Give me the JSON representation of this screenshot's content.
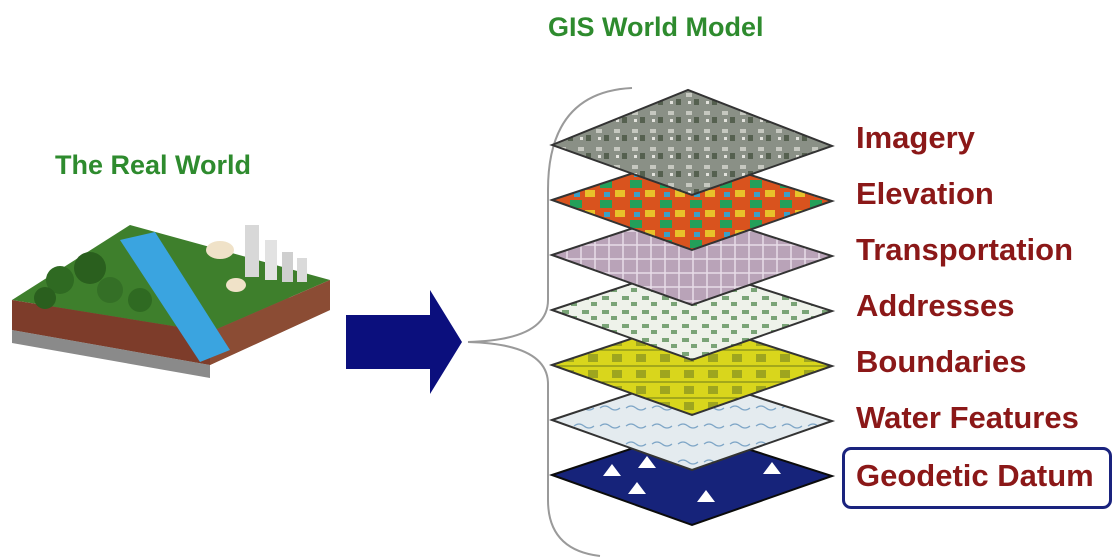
{
  "titles": {
    "gis_world_model": "GIS World Model",
    "real_world": "The Real World"
  },
  "layers": [
    {
      "label": "Imagery",
      "fill": "#8a9086"
    },
    {
      "label": "Elevation",
      "fill": "#d9531e"
    },
    {
      "label": "Transportation",
      "fill": "#b9a3b8"
    },
    {
      "label": "Addresses",
      "fill": "#eef2ea"
    },
    {
      "label": "Boundaries",
      "fill": "#d9d61c"
    },
    {
      "label": "Water Features",
      "fill": "#e4ebef"
    },
    {
      "label": "Geodetic Datum",
      "fill": "#16237a"
    }
  ],
  "colors": {
    "title_green": "#2e8b2e",
    "label_red": "#8b1818",
    "arrow_navy": "#0b0f7d",
    "datum_highlight": "#1a237e"
  }
}
